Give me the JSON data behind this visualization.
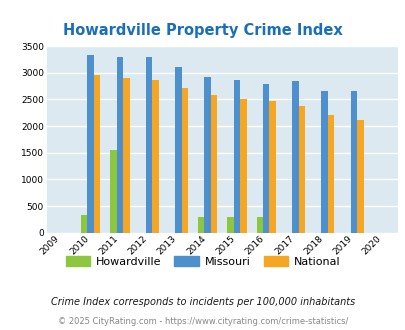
{
  "title": "Howardville Property Crime Index",
  "all_years": [
    "2009",
    "2010",
    "2011",
    "2012",
    "2013",
    "2014",
    "2015",
    "2016",
    "2017",
    "2018",
    "2019",
    "2020"
  ],
  "bar_years": [
    "2010",
    "2011",
    "2012",
    "2013",
    "2014",
    "2015",
    "2016",
    "2017",
    "2018",
    "2019"
  ],
  "howardville": [
    340,
    1550,
    0,
    0,
    290,
    290,
    290,
    0,
    0,
    0
  ],
  "missouri": [
    3340,
    3300,
    3300,
    3110,
    2920,
    2870,
    2790,
    2840,
    2660,
    2650
  ],
  "national": [
    2960,
    2900,
    2860,
    2710,
    2590,
    2500,
    2470,
    2370,
    2210,
    2110
  ],
  "color_howardville": "#8dc63f",
  "color_missouri": "#4d90cd",
  "color_national": "#f5a623",
  "ylim": [
    0,
    3500
  ],
  "yticks": [
    0,
    500,
    1000,
    1500,
    2000,
    2500,
    3000,
    3500
  ],
  "background_color": "#dce9f0",
  "grid_color": "#ffffff",
  "title_color": "#1a6fba",
  "legend_labels": [
    "Howardville",
    "Missouri",
    "National"
  ],
  "footnote1": "Crime Index corresponds to incidents per 100,000 inhabitants",
  "footnote2": "© 2025 CityRating.com - https://www.cityrating.com/crime-statistics/",
  "footnote1_color": "#1a1a1a",
  "footnote2_color": "#888888",
  "bar_width": 0.22,
  "figsize": [
    4.06,
    3.3
  ],
  "dpi": 100
}
